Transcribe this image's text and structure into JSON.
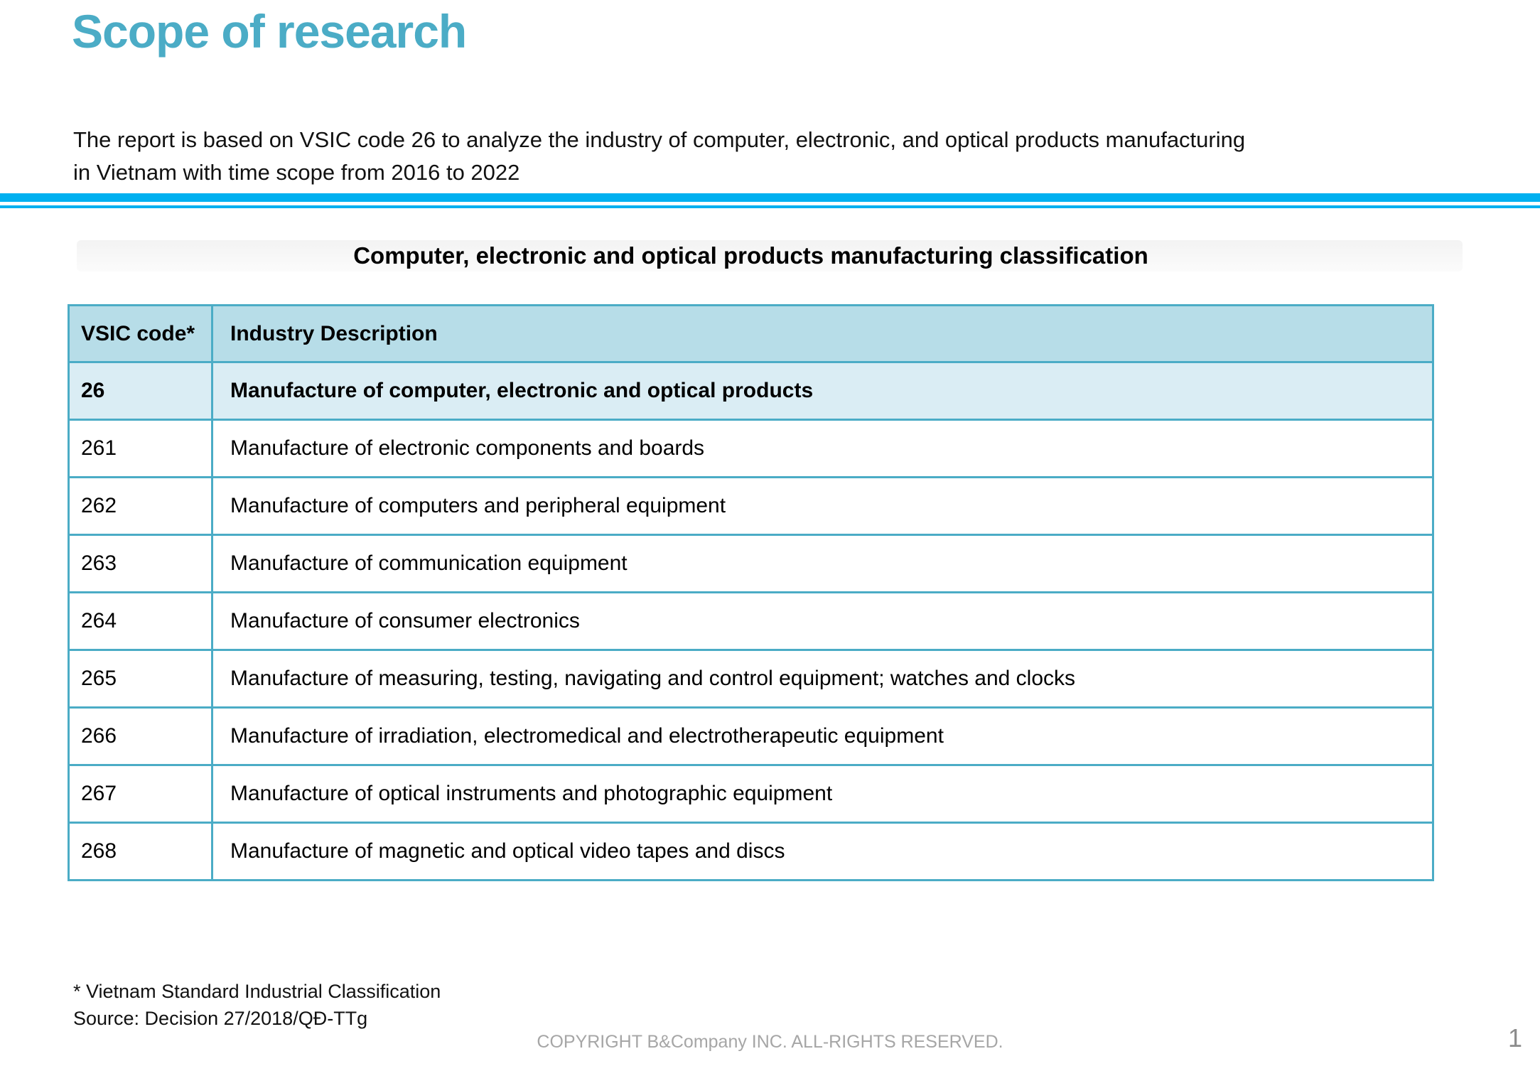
{
  "header": {
    "title": "Scope of research",
    "intro_line1": "The report is based on VSIC code 26 to analyze the industry of computer, electronic, and optical products manufacturing",
    "intro_line2": "in Vietnam with time scope from 2016 to 2022"
  },
  "table": {
    "caption": "Computer, electronic and optical products manufacturing classification",
    "headers": [
      "VSIC code*",
      "Industry Description"
    ],
    "rows": [
      {
        "code": "26",
        "description": "Manufacture of computer, electronic and optical products",
        "highlight": true
      },
      {
        "code": "261",
        "description": "Manufacture of electronic components and boards",
        "highlight": false
      },
      {
        "code": "262",
        "description": "Manufacture of computers and peripheral equipment",
        "highlight": false
      },
      {
        "code": "263",
        "description": "Manufacture of communication equipment",
        "highlight": false
      },
      {
        "code": "264",
        "description": "Manufacture of consumer electronics",
        "highlight": false
      },
      {
        "code": "265",
        "description": "Manufacture of measuring, testing, navigating and control equipment; watches and clocks",
        "highlight": false
      },
      {
        "code": "266",
        "description": "Manufacture of irradiation, electromedical and electrotherapeutic equipment",
        "highlight": false
      },
      {
        "code": "267",
        "description": "Manufacture of optical instruments and photographic equipment",
        "highlight": false
      },
      {
        "code": "268",
        "description": "Manufacture of magnetic and optical video tapes and discs",
        "highlight": false
      }
    ]
  },
  "footer": {
    "footnote": "* Vietnam Standard Industrial Classification",
    "source": "Source: Decision 27/2018/QĐ-TTg",
    "copyright": "COPYRIGHT B&Company INC. ALL-RIGHTS RESERVED.",
    "page_number": "1"
  },
  "colors": {
    "accent_teal": "#4BACC6",
    "rule_blue": "#00B0F0",
    "table_border": "#4BACC6",
    "header_row_bg": "#B7DDE8",
    "highlight_row_bg": "#DAEDF4",
    "muted_gray": "#A6A6A6",
    "text_black": "#111111"
  }
}
